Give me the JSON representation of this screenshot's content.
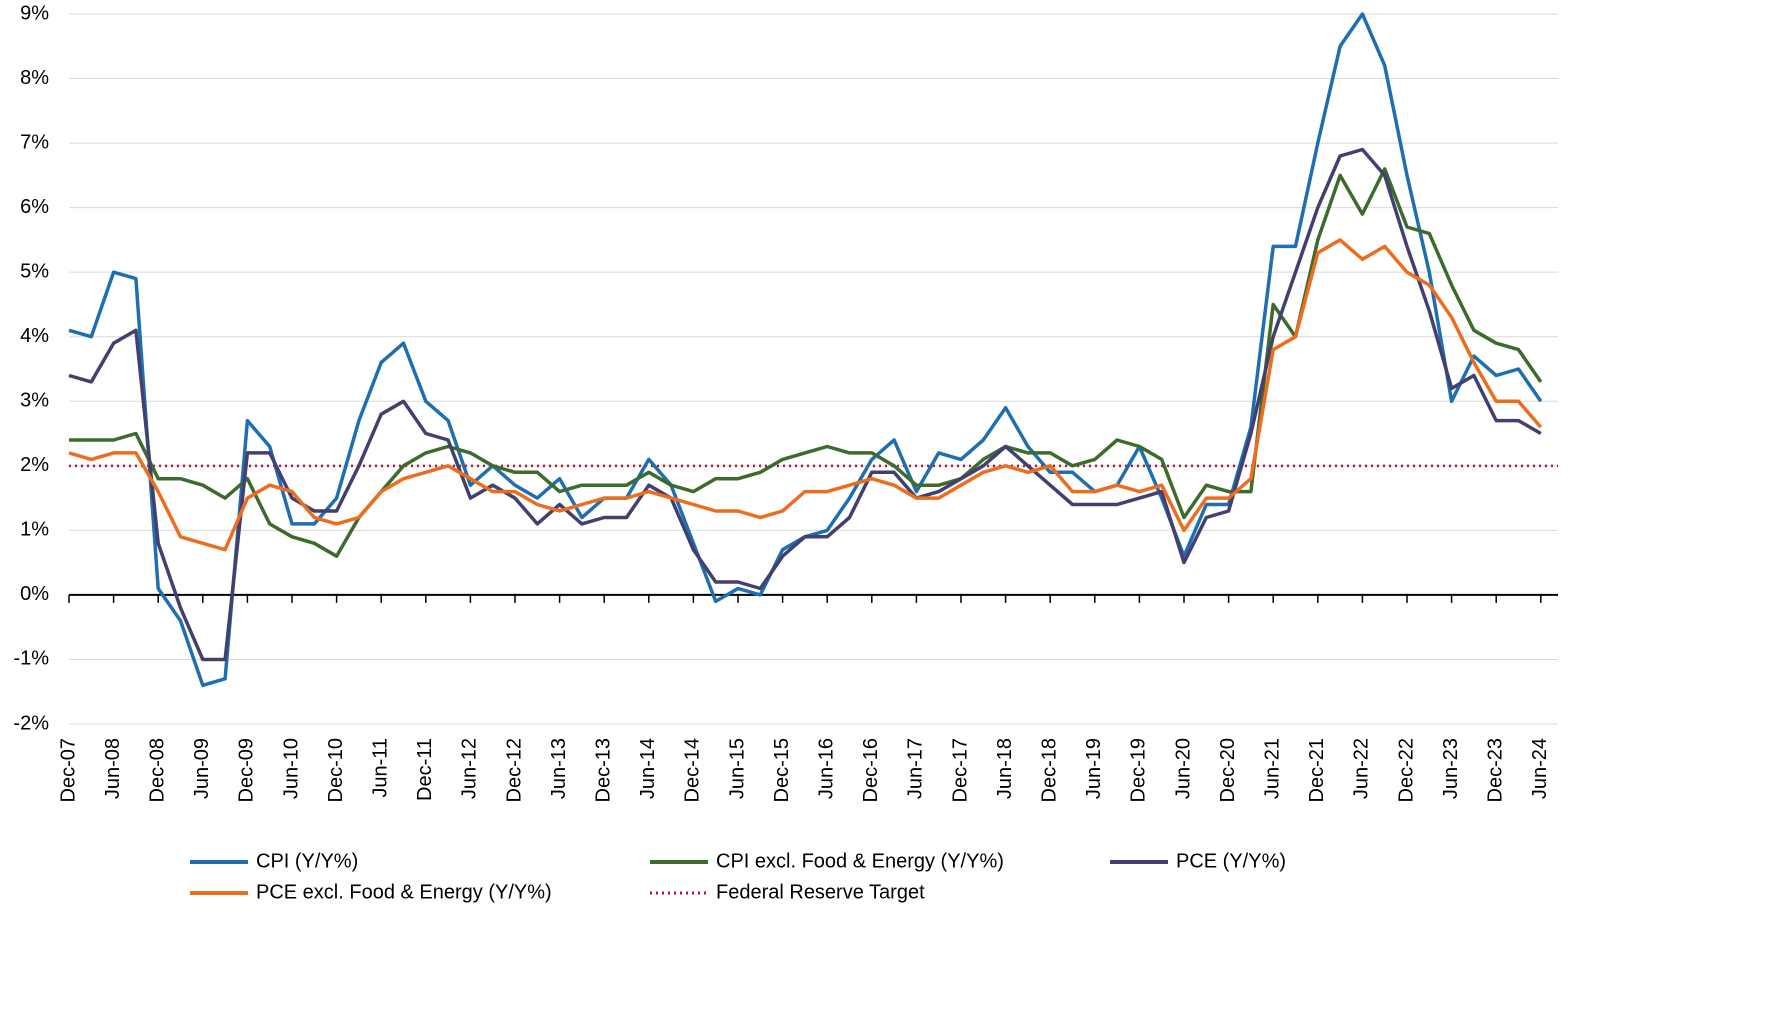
{
  "chart_data": {
    "type": "line",
    "categories": [
      "Dec-07",
      null,
      "Jun-08",
      null,
      "Dec-08",
      null,
      "Jun-09",
      null,
      "Dec-09",
      null,
      "Jun-10",
      null,
      "Dec-10",
      null,
      "Jun-11",
      null,
      "Dec-11",
      null,
      "Jun-12",
      null,
      "Dec-12",
      null,
      "Jun-13",
      null,
      "Dec-13",
      null,
      "Jun-14",
      null,
      "Dec-14",
      null,
      "Jun-15",
      null,
      "Dec-15",
      null,
      "Jun-16",
      null,
      "Dec-16",
      null,
      "Jun-17",
      null,
      "Dec-17",
      null,
      "Jun-18",
      null,
      "Dec-18",
      null,
      "Jun-19",
      null,
      "Dec-19",
      null,
      "Jun-20",
      null,
      "Dec-20",
      null,
      "Jun-21",
      null,
      "Dec-21",
      null,
      "Jun-22",
      null,
      "Dec-22",
      null,
      "Jun-23",
      null,
      "Dec-23",
      null,
      "Jun-24"
    ],
    "series": [
      {
        "name": "CPI (Y/Y%)",
        "color": "#1f6fb0",
        "values": [
          4.1,
          4.0,
          5.0,
          4.9,
          0.1,
          -0.4,
          -1.4,
          -1.3,
          2.7,
          2.3,
          1.1,
          1.1,
          1.5,
          2.7,
          3.6,
          3.9,
          3.0,
          2.7,
          1.7,
          2.0,
          1.7,
          1.5,
          1.8,
          1.2,
          1.5,
          1.5,
          2.1,
          1.7,
          0.8,
          -0.1,
          0.1,
          0.0,
          0.7,
          0.9,
          1.0,
          1.5,
          2.1,
          2.4,
          1.6,
          2.2,
          2.1,
          2.4,
          2.9,
          2.3,
          1.9,
          1.9,
          1.6,
          1.7,
          2.3,
          1.5,
          0.6,
          1.4,
          1.4,
          2.6,
          5.4,
          5.4,
          7.0,
          8.5,
          9.0,
          8.2,
          6.5,
          5.0,
          3.0,
          3.7,
          3.4,
          3.5,
          3.0
        ]
      },
      {
        "name": "CPI excl. Food & Energy (Y/Y%)",
        "color": "#3d6b2c",
        "values": [
          2.4,
          2.4,
          2.4,
          2.5,
          1.8,
          1.8,
          1.7,
          1.5,
          1.8,
          1.1,
          0.9,
          0.8,
          0.6,
          1.2,
          1.6,
          2.0,
          2.2,
          2.3,
          2.2,
          2.0,
          1.9,
          1.9,
          1.6,
          1.7,
          1.7,
          1.7,
          1.9,
          1.7,
          1.6,
          1.8,
          1.8,
          1.9,
          2.1,
          2.2,
          2.3,
          2.2,
          2.2,
          2.0,
          1.7,
          1.7,
          1.8,
          2.1,
          2.3,
          2.2,
          2.2,
          2.0,
          2.1,
          2.4,
          2.3,
          2.1,
          1.2,
          1.7,
          1.6,
          1.6,
          4.5,
          4.0,
          5.5,
          6.5,
          5.9,
          6.6,
          5.7,
          5.6,
          4.8,
          4.1,
          3.9,
          3.8,
          3.3
        ]
      },
      {
        "name": "PCE (Y/Y%)",
        "color": "#433f6e",
        "values": [
          3.4,
          3.3,
          3.9,
          4.1,
          0.8,
          -0.2,
          -1.0,
          -1.0,
          2.2,
          2.2,
          1.5,
          1.3,
          1.3,
          2.0,
          2.8,
          3.0,
          2.5,
          2.4,
          1.5,
          1.7,
          1.5,
          1.1,
          1.4,
          1.1,
          1.2,
          1.2,
          1.7,
          1.5,
          0.7,
          0.2,
          0.2,
          0.1,
          0.6,
          0.9,
          0.9,
          1.2,
          1.9,
          1.9,
          1.5,
          1.6,
          1.8,
          2.0,
          2.3,
          2.0,
          1.7,
          1.4,
          1.4,
          1.4,
          1.5,
          1.6,
          0.5,
          1.2,
          1.3,
          2.5,
          4.0,
          5.0,
          6.0,
          6.8,
          6.9,
          6.5,
          5.4,
          4.4,
          3.2,
          3.4,
          2.7,
          2.7,
          2.5
        ]
      },
      {
        "name": "PCE excl. Food & Energy (Y/Y%)",
        "color": "#ed6d1f",
        "values": [
          2.2,
          2.1,
          2.2,
          2.2,
          1.6,
          0.9,
          0.8,
          0.7,
          1.5,
          1.7,
          1.6,
          1.2,
          1.1,
          1.2,
          1.6,
          1.8,
          1.9,
          2.0,
          1.8,
          1.6,
          1.6,
          1.4,
          1.3,
          1.4,
          1.5,
          1.5,
          1.6,
          1.5,
          1.4,
          1.3,
          1.3,
          1.2,
          1.3,
          1.6,
          1.6,
          1.7,
          1.8,
          1.7,
          1.5,
          1.5,
          1.7,
          1.9,
          2.0,
          1.9,
          2.0,
          1.6,
          1.6,
          1.7,
          1.6,
          1.7,
          1.0,
          1.5,
          1.5,
          1.8,
          3.8,
          4.0,
          5.3,
          5.5,
          5.2,
          5.4,
          5.0,
          4.8,
          4.3,
          3.6,
          3.0,
          3.0,
          2.6
        ]
      }
    ],
    "target": {
      "name": "Federal Reserve Target",
      "color": "#b0163a",
      "value": 2
    },
    "ylim": [
      -2,
      9
    ],
    "yticks": [
      {
        "value": -2,
        "label": "-2%"
      },
      {
        "value": -1,
        "label": "-1%"
      },
      {
        "value": 0,
        "label": "0%"
      },
      {
        "value": 1,
        "label": "1%"
      },
      {
        "value": 2,
        "label": "2%"
      },
      {
        "value": 3,
        "label": "3%"
      },
      {
        "value": 4,
        "label": "4%"
      },
      {
        "value": 5,
        "label": "5%"
      },
      {
        "value": 6,
        "label": "6%"
      },
      {
        "value": 7,
        "label": "7%"
      },
      {
        "value": 8,
        "label": "8%"
      },
      {
        "value": 9,
        "label": "9%"
      }
    ],
    "grid": true,
    "legend": "bottom"
  }
}
